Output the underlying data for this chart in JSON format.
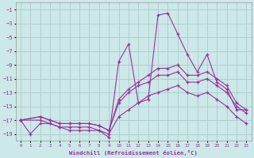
{
  "xlabel": "Windchill (Refroidissement éolien,°C)",
  "background_color": "#cce8e8",
  "grid_color": "#aacccc",
  "line_color": "#993399",
  "xlim": [
    -0.5,
    23.5
  ],
  "ylim": [
    -20,
    0
  ],
  "yticks": [
    -1,
    -3,
    -5,
    -7,
    -9,
    -11,
    -13,
    -15,
    -17,
    -19
  ],
  "xticks": [
    0,
    1,
    2,
    3,
    4,
    5,
    6,
    7,
    8,
    9,
    10,
    11,
    12,
    13,
    14,
    15,
    16,
    17,
    18,
    19,
    20,
    21,
    22,
    23
  ],
  "line1_x": [
    0,
    1,
    2,
    3,
    4,
    5,
    6,
    7,
    8,
    9,
    10,
    11,
    12,
    13,
    14,
    15,
    16,
    17,
    18,
    19,
    20,
    21,
    22,
    23
  ],
  "line1_y": [
    -17.0,
    -19.0,
    -17.5,
    -17.5,
    -18.0,
    -18.5,
    -18.5,
    -18.5,
    -18.5,
    -19.5,
    -8.5,
    -6.0,
    -14.5,
    -14.0,
    -1.8,
    -1.5,
    -4.5,
    -7.5,
    -10.0,
    -7.5,
    -11.5,
    -12.5,
    -15.5,
    -15.5
  ],
  "line2_x": [
    0,
    2,
    3,
    4,
    5,
    6,
    7,
    8,
    9,
    10,
    11,
    12,
    13,
    14,
    15,
    16,
    17,
    18,
    19,
    20,
    21,
    22,
    23
  ],
  "line2_y": [
    -17.0,
    -16.5,
    -17.0,
    -17.5,
    -17.5,
    -17.5,
    -17.5,
    -17.8,
    -18.5,
    -14.0,
    -12.5,
    -11.5,
    -10.5,
    -9.5,
    -9.5,
    -9.0,
    -10.5,
    -10.5,
    -10.0,
    -11.0,
    -12.0,
    -14.5,
    -15.5
  ],
  "line3_x": [
    0,
    2,
    3,
    4,
    5,
    6,
    7,
    8,
    9,
    10,
    11,
    12,
    13,
    14,
    15,
    16,
    17,
    18,
    19,
    20,
    21,
    22,
    23
  ],
  "line3_y": [
    -17.0,
    -16.5,
    -17.0,
    -17.5,
    -17.5,
    -17.5,
    -17.5,
    -17.8,
    -18.5,
    -14.5,
    -13.0,
    -12.0,
    -11.5,
    -10.5,
    -10.5,
    -10.0,
    -11.5,
    -11.5,
    -11.0,
    -12.0,
    -13.0,
    -15.0,
    -16.0
  ],
  "line4_x": [
    0,
    2,
    3,
    4,
    5,
    6,
    7,
    8,
    9,
    10,
    11,
    12,
    13,
    14,
    15,
    16,
    17,
    18,
    19,
    20,
    21,
    22,
    23
  ],
  "line4_y": [
    -17.0,
    -17.0,
    -17.5,
    -18.0,
    -18.0,
    -18.0,
    -18.0,
    -18.5,
    -19.0,
    -16.5,
    -15.5,
    -14.5,
    -13.5,
    -13.0,
    -12.5,
    -12.0,
    -13.0,
    -13.5,
    -13.0,
    -14.0,
    -15.0,
    -16.5,
    -17.5
  ]
}
